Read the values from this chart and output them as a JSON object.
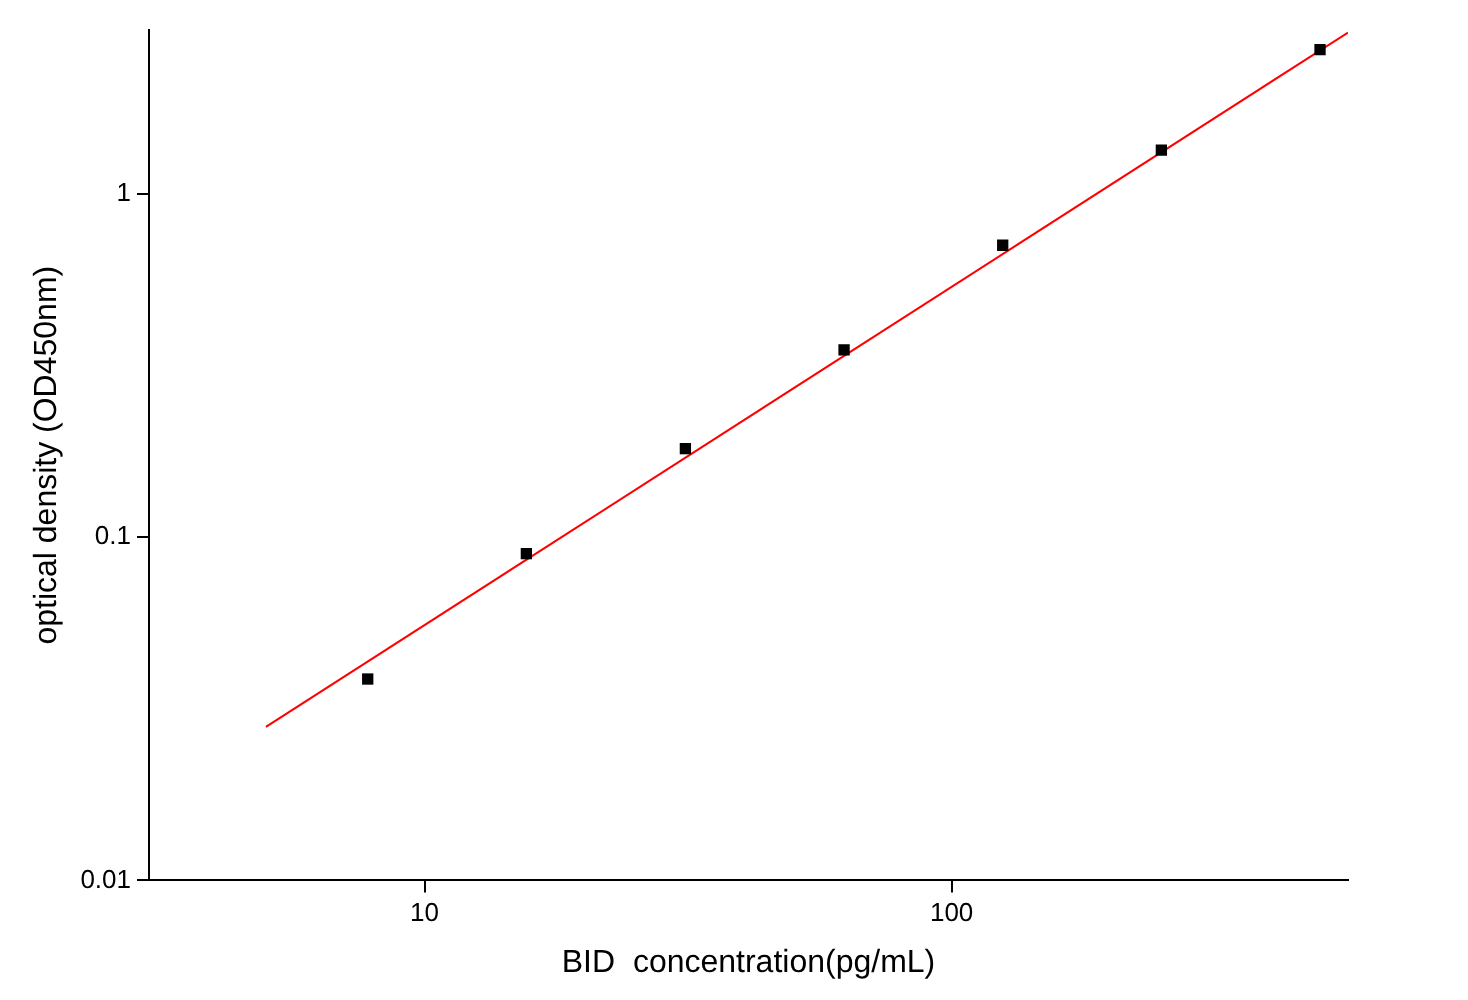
{
  "chart_data": {
    "type": "scatter",
    "xlabel": "BID  concentration(pg/mL)",
    "ylabel": "optical density (OD450nm)",
    "log": "xy",
    "xlim": [
      3,
      565
    ],
    "xticks": [
      10,
      100
    ],
    "ylim": [
      0.01,
      3
    ],
    "yticks": [
      0.01,
      0.1,
      1
    ],
    "grid": false,
    "legend": false,
    "series": [
      {
        "marker": "square",
        "color": "#000000",
        "x": [
          7.8,
          15.6,
          31.25,
          62.5,
          125,
          250,
          500
        ],
        "values": [
          0.0386,
          0.0895,
          0.181,
          0.351,
          0.708,
          1.34,
          2.63
        ]
      },
      {
        "type": "line",
        "marker": "none",
        "line_style": "solid",
        "color": "#ff0000",
        "x": [
          5,
          565
        ],
        "values": [
          0.028,
          2.95
        ]
      }
    ]
  }
}
